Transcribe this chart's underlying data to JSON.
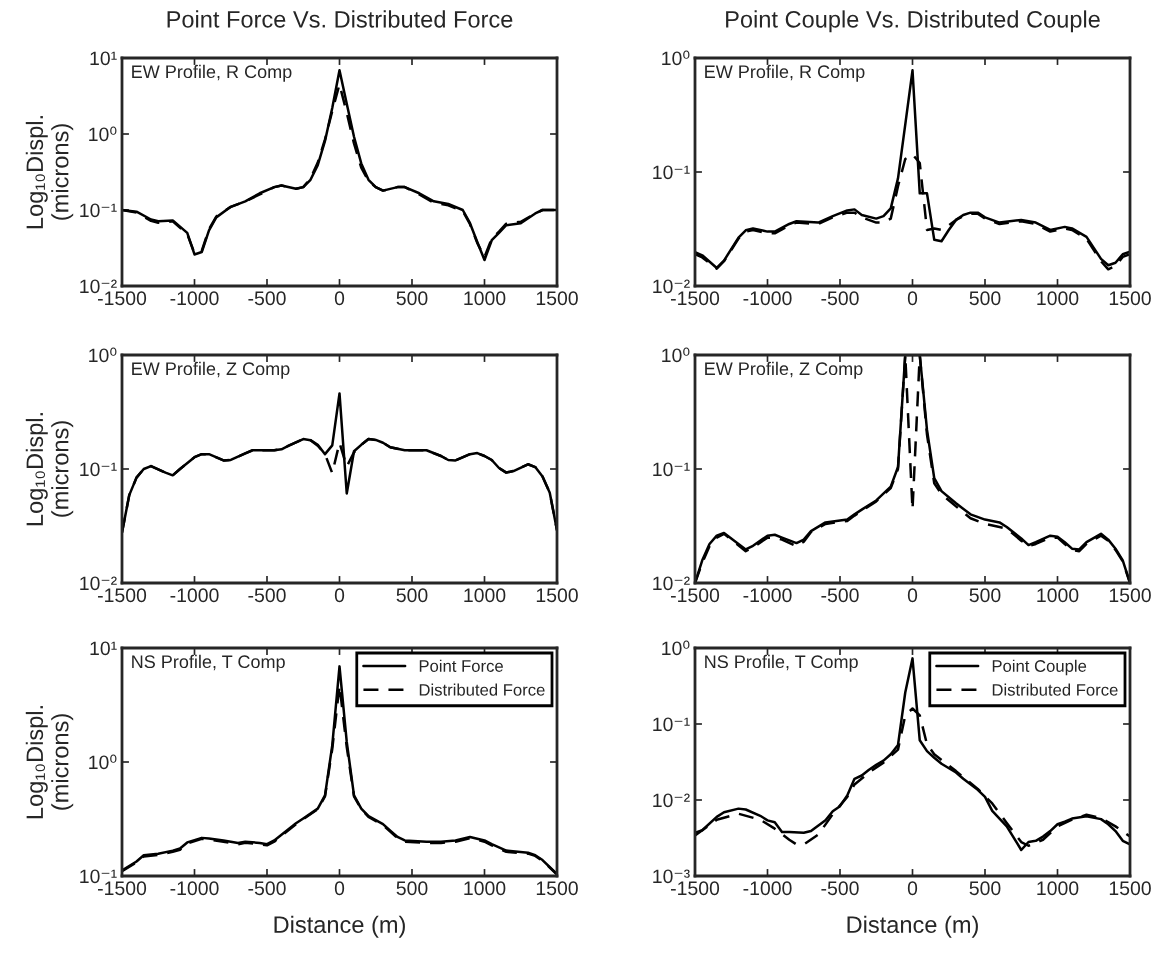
{
  "chart_data": [
    {
      "type": "line",
      "title": "Point Force Vs. Distributed Force",
      "ylabel": "Log₁₀Displ.\n(microns)",
      "log": "y",
      "xlim": [
        -1500,
        1500
      ],
      "xticks": [
        -1500,
        -1000,
        -500,
        0,
        500,
        1000,
        1500
      ],
      "ylim": [
        0.01,
        10
      ],
      "yticks": [
        {
          "value": 0.01,
          "label": "10⁻²"
        },
        {
          "value": 0.1,
          "label": "10⁻¹"
        },
        {
          "value": 1,
          "label": "10⁰"
        },
        {
          "value": 10,
          "label": "10¹"
        }
      ],
      "annotations": [
        "EW Profile, R Comp"
      ],
      "series": [
        {
          "color": "#000000",
          "line_style": "solid",
          "x": [
            -1500,
            -1400,
            -1300,
            -1250,
            -1150,
            -1050,
            -1000,
            -950,
            -900,
            -850,
            -750,
            -650,
            -550,
            -450,
            -400,
            -300,
            -250,
            -200,
            -150,
            -100,
            -50,
            0,
            50,
            100,
            150,
            200,
            250,
            300,
            400,
            450,
            550,
            650,
            750,
            850,
            900,
            950,
            1000,
            1050,
            1100,
            1150,
            1250,
            1350,
            1400,
            1500
          ],
          "values": [
            0.1,
            0.095,
            0.075,
            0.071,
            0.073,
            0.05,
            0.026,
            0.028,
            0.054,
            0.08,
            0.11,
            0.13,
            0.166,
            0.2,
            0.21,
            0.19,
            0.2,
            0.25,
            0.39,
            0.81,
            2.2,
            6.9,
            2.5,
            0.92,
            0.41,
            0.25,
            0.2,
            0.18,
            0.2,
            0.2,
            0.166,
            0.13,
            0.12,
            0.1,
            0.067,
            0.038,
            0.022,
            0.04,
            0.05,
            0.063,
            0.067,
            0.09,
            0.1,
            0.1
          ]
        },
        {
          "color": "#000000",
          "line_style": "dashed",
          "x": [
            -1500,
            -1400,
            -1300,
            -1250,
            -1150,
            -1050,
            -1000,
            -950,
            -900,
            -850,
            -750,
            -650,
            -550,
            -450,
            -400,
            -300,
            -250,
            -200,
            -150,
            -100,
            -50,
            0,
            50,
            100,
            150,
            200,
            250,
            300,
            400,
            450,
            550,
            650,
            750,
            850,
            900,
            950,
            1000,
            1050,
            1100,
            1150,
            1250,
            1350,
            1400,
            1500
          ],
          "values": [
            0.1,
            0.093,
            0.072,
            0.068,
            0.071,
            0.048,
            0.027,
            0.029,
            0.056,
            0.082,
            0.11,
            0.13,
            0.16,
            0.2,
            0.21,
            0.19,
            0.2,
            0.26,
            0.42,
            0.85,
            2.0,
            4.5,
            1.9,
            0.75,
            0.36,
            0.24,
            0.2,
            0.18,
            0.2,
            0.2,
            0.16,
            0.125,
            0.115,
            0.097,
            0.065,
            0.037,
            0.024,
            0.042,
            0.052,
            0.066,
            0.07,
            0.09,
            0.1,
            0.1
          ]
        }
      ]
    },
    {
      "type": "line",
      "title": "Point Couple Vs. Distributed Couple",
      "log": "y",
      "xlim": [
        -1500,
        1500
      ],
      "xticks": [
        -1500,
        -1000,
        -500,
        0,
        500,
        1000,
        1500
      ],
      "ylim": [
        0.01,
        1
      ],
      "yticks": [
        {
          "value": 0.01,
          "label": "10⁻²"
        },
        {
          "value": 0.1,
          "label": "10⁻¹"
        },
        {
          "value": 1,
          "label": "10⁰"
        }
      ],
      "annotations": [
        "EW Profile, R Comp"
      ],
      "series": [
        {
          "color": "#000000",
          "line_style": "solid",
          "x": [
            -1500,
            -1450,
            -1350,
            -1300,
            -1200,
            -1150,
            -1100,
            -1000,
            -950,
            -850,
            -800,
            -650,
            -550,
            -450,
            -400,
            -350,
            -250,
            -200,
            -150,
            -100,
            -50,
            0,
            50,
            100,
            150,
            200,
            250,
            300,
            350,
            400,
            450,
            500,
            600,
            750,
            850,
            950,
            1050,
            1100,
            1200,
            1300,
            1350,
            1400,
            1450,
            1500
          ],
          "values": [
            0.0198,
            0.0186,
            0.0144,
            0.0167,
            0.0266,
            0.0308,
            0.032,
            0.03,
            0.03,
            0.035,
            0.037,
            0.036,
            0.041,
            0.046,
            0.047,
            0.042,
            0.039,
            0.041,
            0.048,
            0.088,
            0.26,
            0.78,
            0.065,
            0.065,
            0.0254,
            0.0247,
            0.031,
            0.038,
            0.042,
            0.044,
            0.044,
            0.04,
            0.036,
            0.038,
            0.036,
            0.031,
            0.033,
            0.032,
            0.027,
            0.0173,
            0.0152,
            0.016,
            0.019,
            0.02
          ]
        },
        {
          "color": "#000000",
          "line_style": "dashed",
          "x": [
            -1500,
            -1450,
            -1350,
            -1300,
            -1200,
            -1150,
            -1100,
            -1000,
            -950,
            -850,
            -800,
            -650,
            -550,
            -450,
            -400,
            -350,
            -250,
            -200,
            -150,
            -100,
            -50,
            0,
            50,
            100,
            150,
            200,
            250,
            300,
            350,
            400,
            450,
            500,
            600,
            750,
            850,
            950,
            1050,
            1100,
            1200,
            1300,
            1350,
            1400,
            1450,
            1500
          ],
          "values": [
            0.019,
            0.0178,
            0.0142,
            0.0165,
            0.026,
            0.03,
            0.031,
            0.029,
            0.029,
            0.034,
            0.036,
            0.035,
            0.04,
            0.044,
            0.044,
            0.04,
            0.036,
            0.036,
            0.039,
            0.075,
            0.13,
            0.143,
            0.12,
            0.031,
            0.032,
            0.031,
            0.034,
            0.038,
            0.041,
            0.043,
            0.043,
            0.039,
            0.035,
            0.037,
            0.035,
            0.03,
            0.032,
            0.031,
            0.026,
            0.0165,
            0.014,
            0.015,
            0.018,
            0.019
          ]
        }
      ]
    },
    {
      "type": "line",
      "ylabel": "Log₁₀Displ.\n(microns)",
      "log": "y",
      "xlim": [
        -1500,
        1500
      ],
      "xticks": [
        -1500,
        -1000,
        -500,
        0,
        500,
        1000,
        1500
      ],
      "ylim": [
        0.01,
        1
      ],
      "yticks": [
        {
          "value": 0.01,
          "label": "10⁻²"
        },
        {
          "value": 0.1,
          "label": "10⁻¹"
        },
        {
          "value": 1,
          "label": "10⁰"
        }
      ],
      "annotations": [
        "EW Profile, Z Comp"
      ],
      "series": [
        {
          "color": "#000000",
          "line_style": "solid",
          "x": [
            -1500,
            -1450,
            -1400,
            -1350,
            -1300,
            -1200,
            -1150,
            -1100,
            -1000,
            -950,
            -900,
            -800,
            -750,
            -650,
            -600,
            -450,
            -400,
            -350,
            -250,
            -200,
            -150,
            -100,
            -50,
            0,
            50,
            100,
            150,
            200,
            250,
            300,
            350,
            450,
            600,
            700,
            750,
            800,
            900,
            950,
            1000,
            1050,
            1100,
            1150,
            1200,
            1300,
            1350,
            1400,
            1450,
            1500
          ],
          "values": [
            0.0277,
            0.059,
            0.084,
            0.1,
            0.106,
            0.093,
            0.088,
            0.1,
            0.127,
            0.135,
            0.135,
            0.119,
            0.12,
            0.137,
            0.146,
            0.146,
            0.149,
            0.16,
            0.183,
            0.179,
            0.163,
            0.135,
            0.161,
            0.46,
            0.061,
            0.143,
            0.163,
            0.183,
            0.18,
            0.17,
            0.155,
            0.146,
            0.146,
            0.13,
            0.12,
            0.119,
            0.135,
            0.138,
            0.13,
            0.12,
            0.102,
            0.093,
            0.096,
            0.11,
            0.104,
            0.086,
            0.062,
            0.029
          ]
        },
        {
          "color": "#000000",
          "line_style": "dashed",
          "x": [
            -1500,
            -1450,
            -1400,
            -1350,
            -1300,
            -1200,
            -1150,
            -1100,
            -1000,
            -950,
            -900,
            -800,
            -750,
            -650,
            -600,
            -450,
            -400,
            -350,
            -250,
            -200,
            -150,
            -100,
            -50,
            0,
            50,
            100,
            150,
            200,
            250,
            300,
            350,
            450,
            600,
            700,
            750,
            800,
            900,
            950,
            1000,
            1050,
            1100,
            1150,
            1200,
            1300,
            1350,
            1400,
            1450,
            1500
          ],
          "values": [
            0.0277,
            0.059,
            0.084,
            0.1,
            0.106,
            0.093,
            0.088,
            0.1,
            0.127,
            0.135,
            0.135,
            0.119,
            0.12,
            0.137,
            0.146,
            0.146,
            0.149,
            0.16,
            0.183,
            0.179,
            0.16,
            0.135,
            0.092,
            0.17,
            0.105,
            0.14,
            0.163,
            0.183,
            0.18,
            0.17,
            0.155,
            0.146,
            0.146,
            0.13,
            0.12,
            0.119,
            0.135,
            0.138,
            0.13,
            0.12,
            0.102,
            0.093,
            0.096,
            0.11,
            0.104,
            0.086,
            0.062,
            0.029
          ]
        }
      ]
    },
    {
      "type": "line",
      "log": "y",
      "xlim": [
        -1500,
        1500
      ],
      "xticks": [
        -1500,
        -1000,
        -500,
        0,
        500,
        1000,
        1500
      ],
      "ylim": [
        0.01,
        1
      ],
      "yticks": [
        {
          "value": 0.01,
          "label": "10⁻²"
        },
        {
          "value": 0.1,
          "label": "10⁻¹"
        },
        {
          "value": 1,
          "label": "10⁰"
        }
      ],
      "annotations": [
        "EW Profile, Z Comp"
      ],
      "series": [
        {
          "color": "#000000",
          "line_style": "solid",
          "x": [
            -1500,
            -1450,
            -1400,
            -1350,
            -1300,
            -1250,
            -1150,
            -1100,
            -1000,
            -950,
            -900,
            -800,
            -750,
            -700,
            -600,
            -450,
            -400,
            -350,
            -250,
            -150,
            -100,
            -50,
            0,
            50,
            100,
            150,
            200,
            300,
            400,
            500,
            600,
            650,
            750,
            800,
            850,
            950,
            1000,
            1050,
            1100,
            1150,
            1200,
            1300,
            1350,
            1400,
            1450,
            1500
          ],
          "values": [
            0.01,
            0.0158,
            0.022,
            0.026,
            0.0275,
            0.0246,
            0.0197,
            0.0212,
            0.026,
            0.0265,
            0.025,
            0.0224,
            0.024,
            0.0285,
            0.034,
            0.036,
            0.04,
            0.044,
            0.053,
            0.07,
            0.104,
            1.0,
            1.0,
            1.0,
            0.22,
            0.083,
            0.064,
            0.05,
            0.04,
            0.036,
            0.034,
            0.031,
            0.0246,
            0.0215,
            0.0228,
            0.026,
            0.0255,
            0.0228,
            0.02,
            0.0197,
            0.0228,
            0.027,
            0.024,
            0.02,
            0.0158,
            0.01
          ]
        },
        {
          "color": "#000000",
          "line_style": "dashed",
          "x": [
            -1500,
            -1450,
            -1400,
            -1350,
            -1300,
            -1250,
            -1150,
            -1100,
            -1000,
            -950,
            -900,
            -800,
            -750,
            -700,
            -600,
            -450,
            -400,
            -350,
            -250,
            -150,
            -100,
            -50,
            0,
            50,
            100,
            150,
            200,
            300,
            400,
            500,
            600,
            650,
            750,
            800,
            850,
            950,
            1000,
            1050,
            1100,
            1150,
            1200,
            1300,
            1350,
            1400,
            1450,
            1500
          ],
          "values": [
            0.01,
            0.015,
            0.021,
            0.025,
            0.027,
            0.024,
            0.019,
            0.0205,
            0.025,
            0.025,
            0.024,
            0.021,
            0.023,
            0.028,
            0.033,
            0.035,
            0.039,
            0.043,
            0.052,
            0.068,
            0.1,
            1.0,
            0.044,
            1.0,
            0.2,
            0.075,
            0.06,
            0.047,
            0.037,
            0.033,
            0.031,
            0.03,
            0.0235,
            0.021,
            0.022,
            0.025,
            0.025,
            0.022,
            0.0195,
            0.019,
            0.022,
            0.026,
            0.0235,
            0.0195,
            0.0155,
            0.01
          ]
        }
      ]
    },
    {
      "type": "line",
      "ylabel": "Log₁₀Displ.\n(microns)",
      "xlabel": "Distance (m)",
      "log": "y",
      "legend": "top right",
      "xlim": [
        -1500,
        1500
      ],
      "xticks": [
        -1500,
        -1000,
        -500,
        0,
        500,
        1000,
        1500
      ],
      "ylim": [
        0.1,
        10
      ],
      "yticks": [
        {
          "value": 0.1,
          "label": "10⁻¹"
        },
        {
          "value": 1,
          "label": "10⁰"
        },
        {
          "value": 10,
          "label": "10¹"
        }
      ],
      "annotations": [
        "NS Profile, T Comp"
      ],
      "series": [
        {
          "name": "Point Force",
          "color": "#000000",
          "line_style": "solid",
          "x": [
            -1500,
            -1400,
            -1350,
            -1250,
            -1150,
            -1100,
            -1050,
            -950,
            -900,
            -800,
            -700,
            -650,
            -550,
            -500,
            -450,
            -400,
            -300,
            -250,
            -150,
            -100,
            -50,
            0,
            50,
            100,
            150,
            200,
            300,
            350,
            400,
            450,
            600,
            700,
            800,
            900,
            1000,
            1050,
            1150,
            1300,
            1350,
            1400,
            1500
          ],
          "values": [
            0.112,
            0.134,
            0.152,
            0.157,
            0.167,
            0.174,
            0.197,
            0.216,
            0.213,
            0.205,
            0.195,
            0.2,
            0.195,
            0.19,
            0.205,
            0.23,
            0.29,
            0.32,
            0.39,
            0.51,
            1.4,
            6.9,
            1.5,
            0.51,
            0.39,
            0.335,
            0.285,
            0.25,
            0.22,
            0.205,
            0.2,
            0.2,
            0.205,
            0.22,
            0.205,
            0.19,
            0.167,
            0.16,
            0.152,
            0.138,
            0.104
          ]
        },
        {
          "name": "Distributed Force",
          "color": "#000000",
          "line_style": "dashed",
          "x": [
            -1500,
            -1400,
            -1350,
            -1250,
            -1150,
            -1100,
            -1050,
            -950,
            -900,
            -800,
            -700,
            -650,
            -550,
            -500,
            -450,
            -400,
            -300,
            -250,
            -150,
            -100,
            -50,
            0,
            50,
            100,
            150,
            200,
            300,
            350,
            400,
            450,
            600,
            700,
            800,
            900,
            1000,
            1050,
            1150,
            1300,
            1350,
            1400,
            1500
          ],
          "values": [
            0.11,
            0.132,
            0.148,
            0.153,
            0.163,
            0.17,
            0.193,
            0.212,
            0.208,
            0.2,
            0.19,
            0.196,
            0.19,
            0.186,
            0.2,
            0.225,
            0.285,
            0.315,
            0.385,
            0.5,
            1.3,
            4.7,
            1.35,
            0.5,
            0.385,
            0.33,
            0.28,
            0.245,
            0.215,
            0.2,
            0.195,
            0.195,
            0.2,
            0.215,
            0.2,
            0.186,
            0.163,
            0.157,
            0.15,
            0.136,
            0.103
          ]
        }
      ]
    },
    {
      "type": "line",
      "xlabel": "Distance (m)",
      "log": "y",
      "legend": "top right",
      "xlim": [
        -1500,
        1500
      ],
      "xticks": [
        -1500,
        -1000,
        -500,
        0,
        500,
        1000,
        1500
      ],
      "ylim": [
        0.001,
        1
      ],
      "yticks": [
        {
          "value": 0.001,
          "label": "10⁻³"
        },
        {
          "value": 0.01,
          "label": "10⁻²"
        },
        {
          "value": 0.1,
          "label": "10⁻¹"
        },
        {
          "value": 1,
          "label": "10⁰"
        }
      ],
      "annotations": [
        "NS Profile, T Comp"
      ],
      "series": [
        {
          "name": "Point Couple",
          "color": "#000000",
          "line_style": "solid",
          "x": [
            -1500,
            -1450,
            -1350,
            -1300,
            -1200,
            -1150,
            -1050,
            -1000,
            -950,
            -900,
            -850,
            -750,
            -700,
            -600,
            -550,
            -500,
            -450,
            -400,
            -350,
            -300,
            -250,
            -200,
            -150,
            -100,
            -50,
            0,
            50,
            100,
            150,
            200,
            300,
            350,
            450,
            500,
            550,
            650,
            750,
            800,
            850,
            900,
            950,
            1000,
            1050,
            1100,
            1200,
            1300,
            1350,
            1400,
            1450,
            1500
          ],
          "values": [
            0.0037,
            0.004,
            0.006,
            0.0069,
            0.0077,
            0.0075,
            0.0062,
            0.0054,
            0.0051,
            0.0038,
            0.0038,
            0.0037,
            0.0039,
            0.0054,
            0.0071,
            0.0083,
            0.0115,
            0.019,
            0.021,
            0.025,
            0.029,
            0.033,
            0.04,
            0.053,
            0.26,
            0.73,
            0.061,
            0.044,
            0.036,
            0.03,
            0.023,
            0.019,
            0.0136,
            0.011,
            0.0072,
            0.0045,
            0.0022,
            0.0028,
            0.0029,
            0.0033,
            0.0039,
            0.0048,
            0.0052,
            0.0057,
            0.0061,
            0.0056,
            0.0048,
            0.0039,
            0.0029,
            0.0026
          ]
        },
        {
          "name": "Distributed Force",
          "color": "#000000",
          "line_style": "dashed",
          "x": [
            -1500,
            -1350,
            -1200,
            -1050,
            -950,
            -850,
            -800,
            -750,
            -650,
            -550,
            -450,
            -400,
            -300,
            -200,
            -100,
            -50,
            0,
            50,
            100,
            150,
            300,
            450,
            550,
            650,
            750,
            800,
            900,
            1000,
            1100,
            1200,
            1300,
            1400,
            1500
          ],
          "values": [
            0.0034,
            0.0055,
            0.0066,
            0.0055,
            0.0042,
            0.003,
            0.0026,
            0.0026,
            0.0035,
            0.0065,
            0.011,
            0.016,
            0.023,
            0.031,
            0.046,
            0.13,
            0.16,
            0.13,
            0.054,
            0.04,
            0.024,
            0.014,
            0.009,
            0.005,
            0.0028,
            0.0025,
            0.003,
            0.0045,
            0.0055,
            0.0064,
            0.0058,
            0.0045,
            0.0033
          ]
        }
      ]
    }
  ]
}
